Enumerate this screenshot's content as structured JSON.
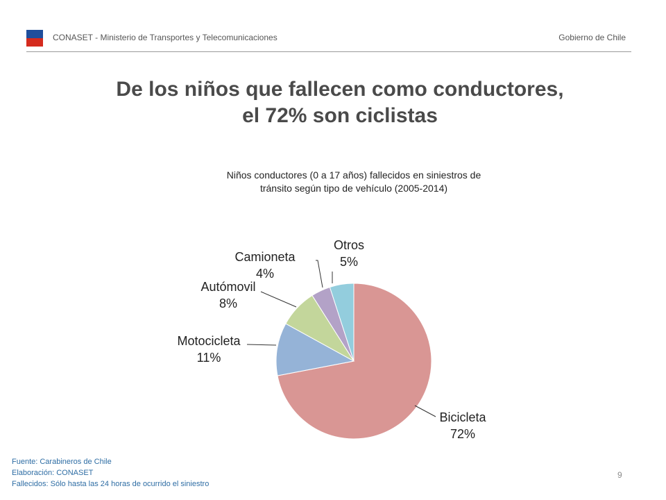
{
  "header": {
    "left_text": "CONASET - Ministerio de Transportes y Telecomunicaciones",
    "right_text": "Gobierno de Chile"
  },
  "slide": {
    "title_line1": "De los niños que fallecen como conductores,",
    "title_line2": "el 72% son ciclistas",
    "page_number": "9"
  },
  "footer": {
    "source": "Fuente: Carabineros de Chile",
    "elaboration": "Elaboración: CONASET",
    "note": "Fallecidos: Sólo hasta las 24 horas de ocurrido el siniestro"
  },
  "chart_data": {
    "type": "pie",
    "title_line1": "Niños conductores (0 a 17 años) fallecidos en siniestros de",
    "title_line2": "tránsito según tipo de vehículo (2005-2014)",
    "categories": [
      "Bicicleta",
      "Motocicleta",
      "Autómovil",
      "Camioneta",
      "Otros"
    ],
    "values": [
      72,
      11,
      8,
      4,
      5
    ],
    "labels": [
      "72%",
      "11%",
      "8%",
      "4%",
      "5%"
    ],
    "colors": [
      "#d99694",
      "#95b3d7",
      "#c3d69b",
      "#b3a2c7",
      "#93cddd"
    ],
    "start_angle_deg": 0,
    "direction": "clockwise",
    "legend": "none"
  }
}
